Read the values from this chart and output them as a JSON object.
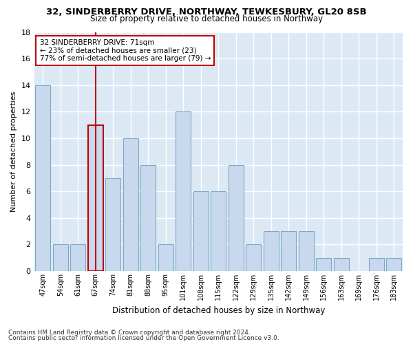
{
  "title": "32, SINDERBERRY DRIVE, NORTHWAY, TEWKESBURY, GL20 8SB",
  "subtitle": "Size of property relative to detached houses in Northway",
  "xlabel": "Distribution of detached houses by size in Northway",
  "ylabel": "Number of detached properties",
  "categories": [
    "47sqm",
    "54sqm",
    "61sqm",
    "67sqm",
    "74sqm",
    "81sqm",
    "88sqm",
    "95sqm",
    "101sqm",
    "108sqm",
    "115sqm",
    "122sqm",
    "129sqm",
    "135sqm",
    "142sqm",
    "149sqm",
    "156sqm",
    "163sqm",
    "169sqm",
    "176sqm",
    "183sqm"
  ],
  "values": [
    14,
    2,
    2,
    11,
    7,
    10,
    8,
    2,
    12,
    6,
    6,
    8,
    2,
    3,
    3,
    3,
    1,
    1,
    0,
    1,
    1
  ],
  "bar_color": "#c9d9ed",
  "bar_edge_color": "#7ba7c9",
  "highlight_bar_index": 3,
  "highlight_edge_color": "#c00000",
  "vline_color": "#c00000",
  "ylim": [
    0,
    18
  ],
  "yticks": [
    0,
    2,
    4,
    6,
    8,
    10,
    12,
    14,
    16,
    18
  ],
  "annotation_line1": "32 SINDERBERRY DRIVE: 71sqm",
  "annotation_line2": "← 23% of detached houses are smaller (23)",
  "annotation_line3": "77% of semi-detached houses are larger (79) →",
  "annotation_box_color": "#ffffff",
  "annotation_box_edge": "#c00000",
  "background_color": "#dce9f5",
  "grid_color": "#ffffff",
  "footnote1": "Contains HM Land Registry data © Crown copyright and database right 2024.",
  "footnote2": "Contains public sector information licensed under the Open Government Licence v3.0."
}
